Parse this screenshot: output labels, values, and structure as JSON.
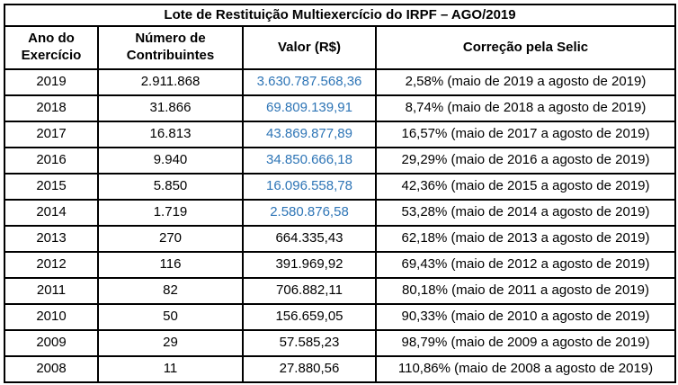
{
  "table": {
    "title": "Lote de Restituição Multiexercício do IRPF – AGO/2019",
    "headers": {
      "year": "Ano do Exercício",
      "contributors": "Número de Contribuintes",
      "value": "Valor (R$)",
      "selic": "Correção pela Selic"
    },
    "value_highlight_color": "#2E75B6",
    "rows": [
      {
        "year": "2019",
        "contributors": "2.911.868",
        "value": "3.630.787.568,36",
        "value_blue": true,
        "selic": "2,58% (maio de 2019 a agosto de 2019)"
      },
      {
        "year": "2018",
        "contributors": "31.866",
        "value": "69.809.139,91",
        "value_blue": true,
        "selic": "8,74% (maio de 2018 a agosto de 2019)"
      },
      {
        "year": "2017",
        "contributors": "16.813",
        "value": "43.869.877,89",
        "value_blue": true,
        "selic": "16,57% (maio de 2017 a agosto de 2019)"
      },
      {
        "year": "2016",
        "contributors": "9.940",
        "value": "34.850.666,18",
        "value_blue": true,
        "selic": "29,29% (maio de 2016 a agosto de 2019)"
      },
      {
        "year": "2015",
        "contributors": "5.850",
        "value": "16.096.558,78",
        "value_blue": true,
        "selic": "42,36% (maio de 2015 a agosto de 2019)"
      },
      {
        "year": "2014",
        "contributors": "1.719",
        "value": "2.580.876,58",
        "value_blue": true,
        "selic": "53,28% (maio de 2014 a agosto de 2019)"
      },
      {
        "year": "2013",
        "contributors": "270",
        "value": "664.335,43",
        "value_blue": false,
        "selic": "62,18% (maio de 2013 a agosto de 2019)"
      },
      {
        "year": "2012",
        "contributors": "116",
        "value": "391.969,92",
        "value_blue": false,
        "selic": "69,43% (maio de 2012 a agosto de 2019)"
      },
      {
        "year": "2011",
        "contributors": "82",
        "value": "706.882,11",
        "value_blue": false,
        "selic": "80,18% (maio de 2011 a agosto de 2019)"
      },
      {
        "year": "2010",
        "contributors": "50",
        "value": "156.659,05",
        "value_blue": false,
        "selic": "90,33% (maio de 2010 a agosto de 2019)"
      },
      {
        "year": "2009",
        "contributors": "29",
        "value": "57.585,23",
        "value_blue": false,
        "selic": "98,79% (maio de 2009 a agosto de 2019)"
      },
      {
        "year": "2008",
        "contributors": "11",
        "value": "27.880,56",
        "value_blue": false,
        "selic": "110,86% (maio de 2008 a agosto de 2019)"
      }
    ]
  }
}
